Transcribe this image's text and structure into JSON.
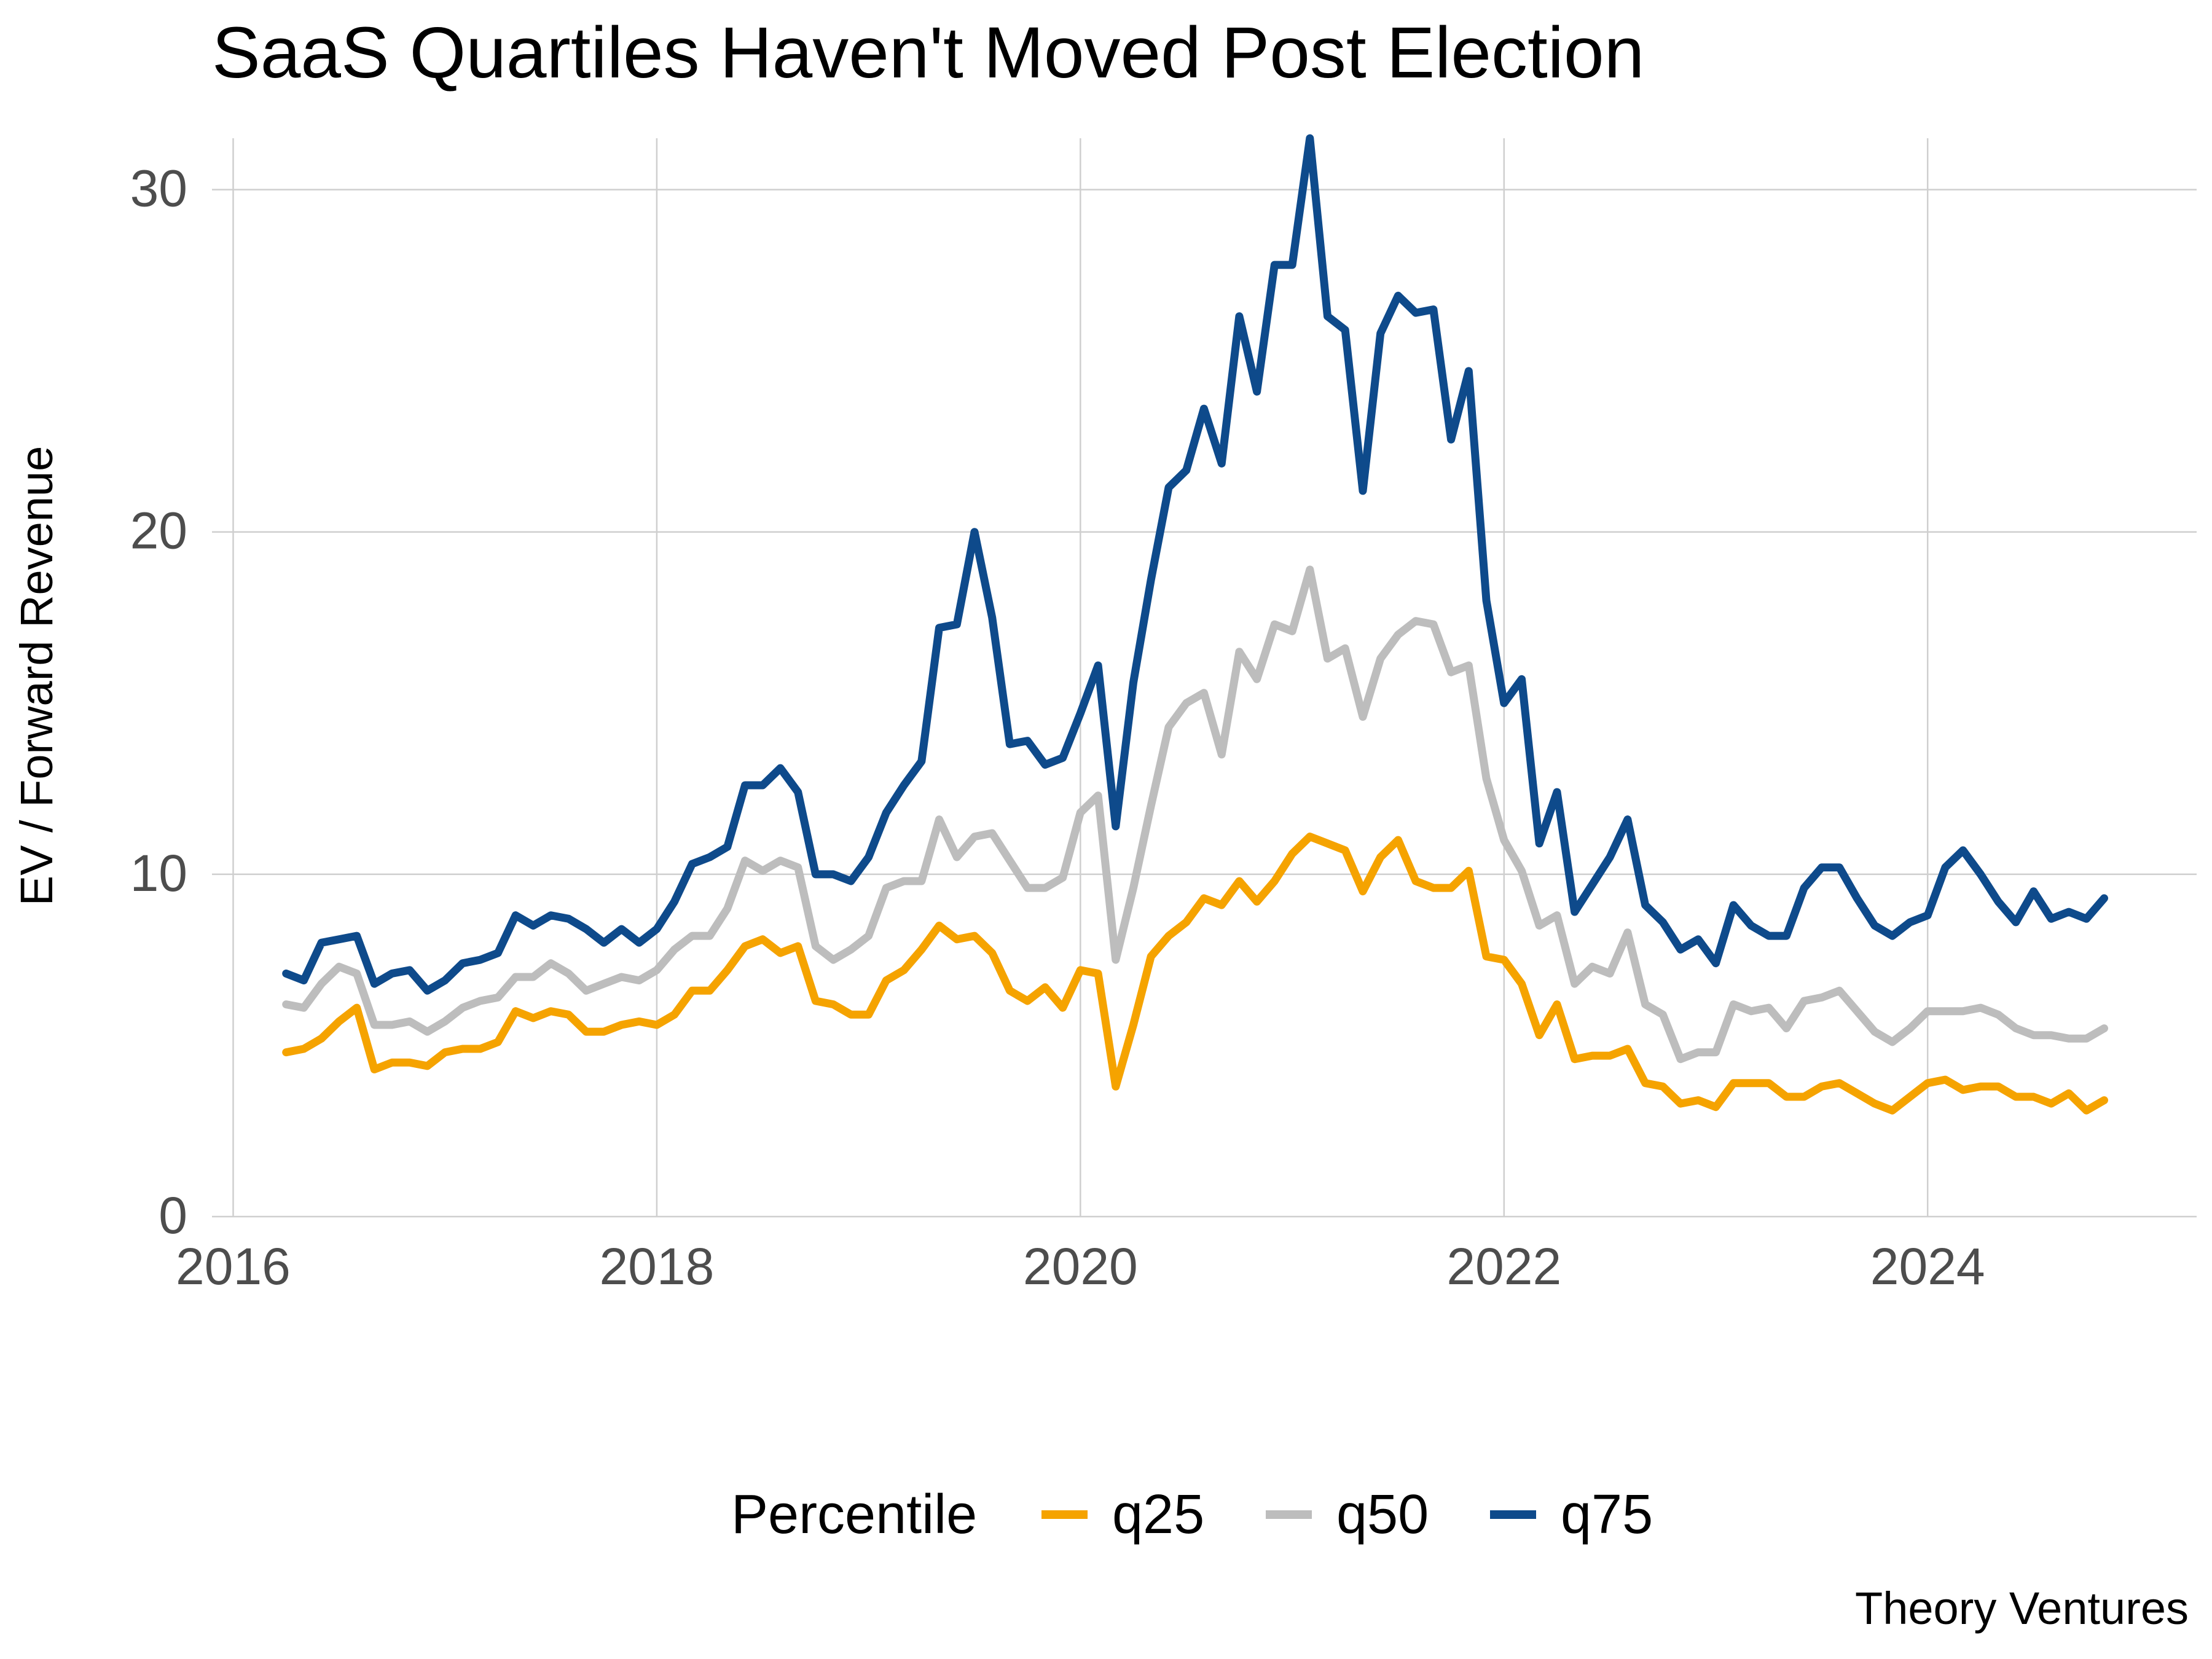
{
  "chart_data": {
    "type": "line",
    "title": "SaaS Quartiles Haven't Moved Post Election",
    "xlabel": "",
    "ylabel": "EV / Forward Revenue",
    "caption": "Theory Ventures",
    "xlim": [
      2015.9,
      2025.27
    ],
    "ylim": [
      0,
      31.5
    ],
    "x_ticks": [
      2016,
      2018,
      2020,
      2022,
      2024
    ],
    "x_tick_labels": [
      "2016",
      "2018",
      "2020",
      "2022",
      "2024"
    ],
    "y_ticks": [
      0,
      10,
      20,
      30
    ],
    "y_tick_labels": [
      "0",
      "10",
      "20",
      "30"
    ],
    "grid": true,
    "legend": {
      "title": "Percentile",
      "position": "bottom"
    },
    "x_start": 2016.25,
    "x_step": 0.0833333,
    "series": [
      {
        "name": "q25",
        "color": "#F5A300",
        "values": [
          4.8,
          4.9,
          5.2,
          5.7,
          6.1,
          4.3,
          4.5,
          4.5,
          4.4,
          4.8,
          4.9,
          4.9,
          5.1,
          6.0,
          5.8,
          6.0,
          5.9,
          5.4,
          5.4,
          5.6,
          5.7,
          5.6,
          5.9,
          6.6,
          6.6,
          7.2,
          7.9,
          8.1,
          7.7,
          7.9,
          6.3,
          6.2,
          5.9,
          5.9,
          6.9,
          7.2,
          7.8,
          8.5,
          8.1,
          8.2,
          7.7,
          6.6,
          6.3,
          6.7,
          6.1,
          7.2,
          7.1,
          3.8,
          5.6,
          7.6,
          8.2,
          8.6,
          9.3,
          9.1,
          9.8,
          9.2,
          9.8,
          10.6,
          11.1,
          10.9,
          10.7,
          9.5,
          10.5,
          11.0,
          9.8,
          9.6,
          9.6,
          10.1,
          7.6,
          7.5,
          6.8,
          5.3,
          6.2,
          4.6,
          4.7,
          4.7,
          4.9,
          3.9,
          3.8,
          3.3,
          3.4,
          3.2,
          3.9,
          3.9,
          3.9,
          3.5,
          3.5,
          3.8,
          3.9,
          3.6,
          3.3,
          3.1,
          3.5,
          3.9,
          4.0,
          3.7,
          3.8,
          3.8,
          3.5,
          3.5,
          3.3,
          3.6,
          3.1,
          3.4
        ]
      },
      {
        "name": "q50",
        "color": "#BDBDBD",
        "values": [
          6.2,
          6.1,
          6.8,
          7.3,
          7.1,
          5.6,
          5.6,
          5.7,
          5.4,
          5.7,
          6.1,
          6.3,
          6.4,
          7.0,
          7.0,
          7.4,
          7.1,
          6.6,
          6.8,
          7.0,
          6.9,
          7.2,
          7.8,
          8.2,
          8.2,
          9.0,
          10.4,
          10.1,
          10.4,
          10.2,
          7.9,
          7.5,
          7.8,
          8.2,
          9.6,
          9.8,
          9.8,
          11.6,
          10.5,
          11.1,
          11.2,
          10.4,
          9.6,
          9.6,
          9.9,
          11.8,
          12.3,
          7.5,
          9.6,
          12.0,
          14.3,
          15.0,
          15.3,
          13.5,
          16.5,
          15.7,
          17.3,
          17.1,
          18.9,
          16.3,
          16.6,
          14.6,
          16.3,
          17.0,
          17.4,
          17.3,
          15.9,
          16.1,
          12.8,
          11.0,
          10.1,
          8.5,
          8.8,
          6.8,
          7.3,
          7.1,
          8.3,
          6.2,
          5.9,
          4.6,
          4.8,
          4.8,
          6.2,
          6.0,
          6.1,
          5.5,
          6.3,
          6.4,
          6.6,
          6.0,
          5.4,
          5.1,
          5.5,
          6.0,
          6.0,
          6.0,
          6.1,
          5.9,
          5.5,
          5.3,
          5.3,
          5.2,
          5.2,
          5.5
        ]
      },
      {
        "name": "q75",
        "color": "#0E4A8B",
        "values": [
          7.1,
          6.9,
          8.0,
          8.1,
          8.2,
          6.8,
          7.1,
          7.2,
          6.6,
          6.9,
          7.4,
          7.5,
          7.7,
          8.8,
          8.5,
          8.8,
          8.7,
          8.4,
          8.0,
          8.4,
          8.0,
          8.4,
          9.2,
          10.3,
          10.5,
          10.8,
          12.6,
          12.6,
          13.1,
          12.4,
          10.0,
          10.0,
          9.8,
          10.5,
          11.8,
          12.6,
          13.3,
          17.2,
          17.3,
          20.0,
          17.5,
          13.8,
          13.9,
          13.2,
          13.4,
          14.7,
          16.1,
          11.4,
          15.6,
          18.6,
          21.3,
          21.8,
          23.6,
          22.0,
          26.3,
          24.1,
          27.8,
          27.8,
          31.5,
          26.3,
          25.9,
          21.2,
          25.8,
          26.9,
          26.4,
          26.5,
          22.7,
          24.7,
          18.0,
          15.0,
          15.7,
          10.9,
          12.4,
          8.9,
          9.7,
          10.5,
          11.6,
          9.1,
          8.6,
          7.8,
          8.1,
          7.4,
          9.1,
          8.5,
          8.2,
          8.2,
          9.6,
          10.2,
          10.2,
          9.3,
          8.5,
          8.2,
          8.6,
          8.8,
          10.2,
          10.7,
          10.0,
          9.2,
          8.6,
          9.5,
          8.7,
          8.9,
          8.7,
          9.3
        ]
      }
    ]
  }
}
